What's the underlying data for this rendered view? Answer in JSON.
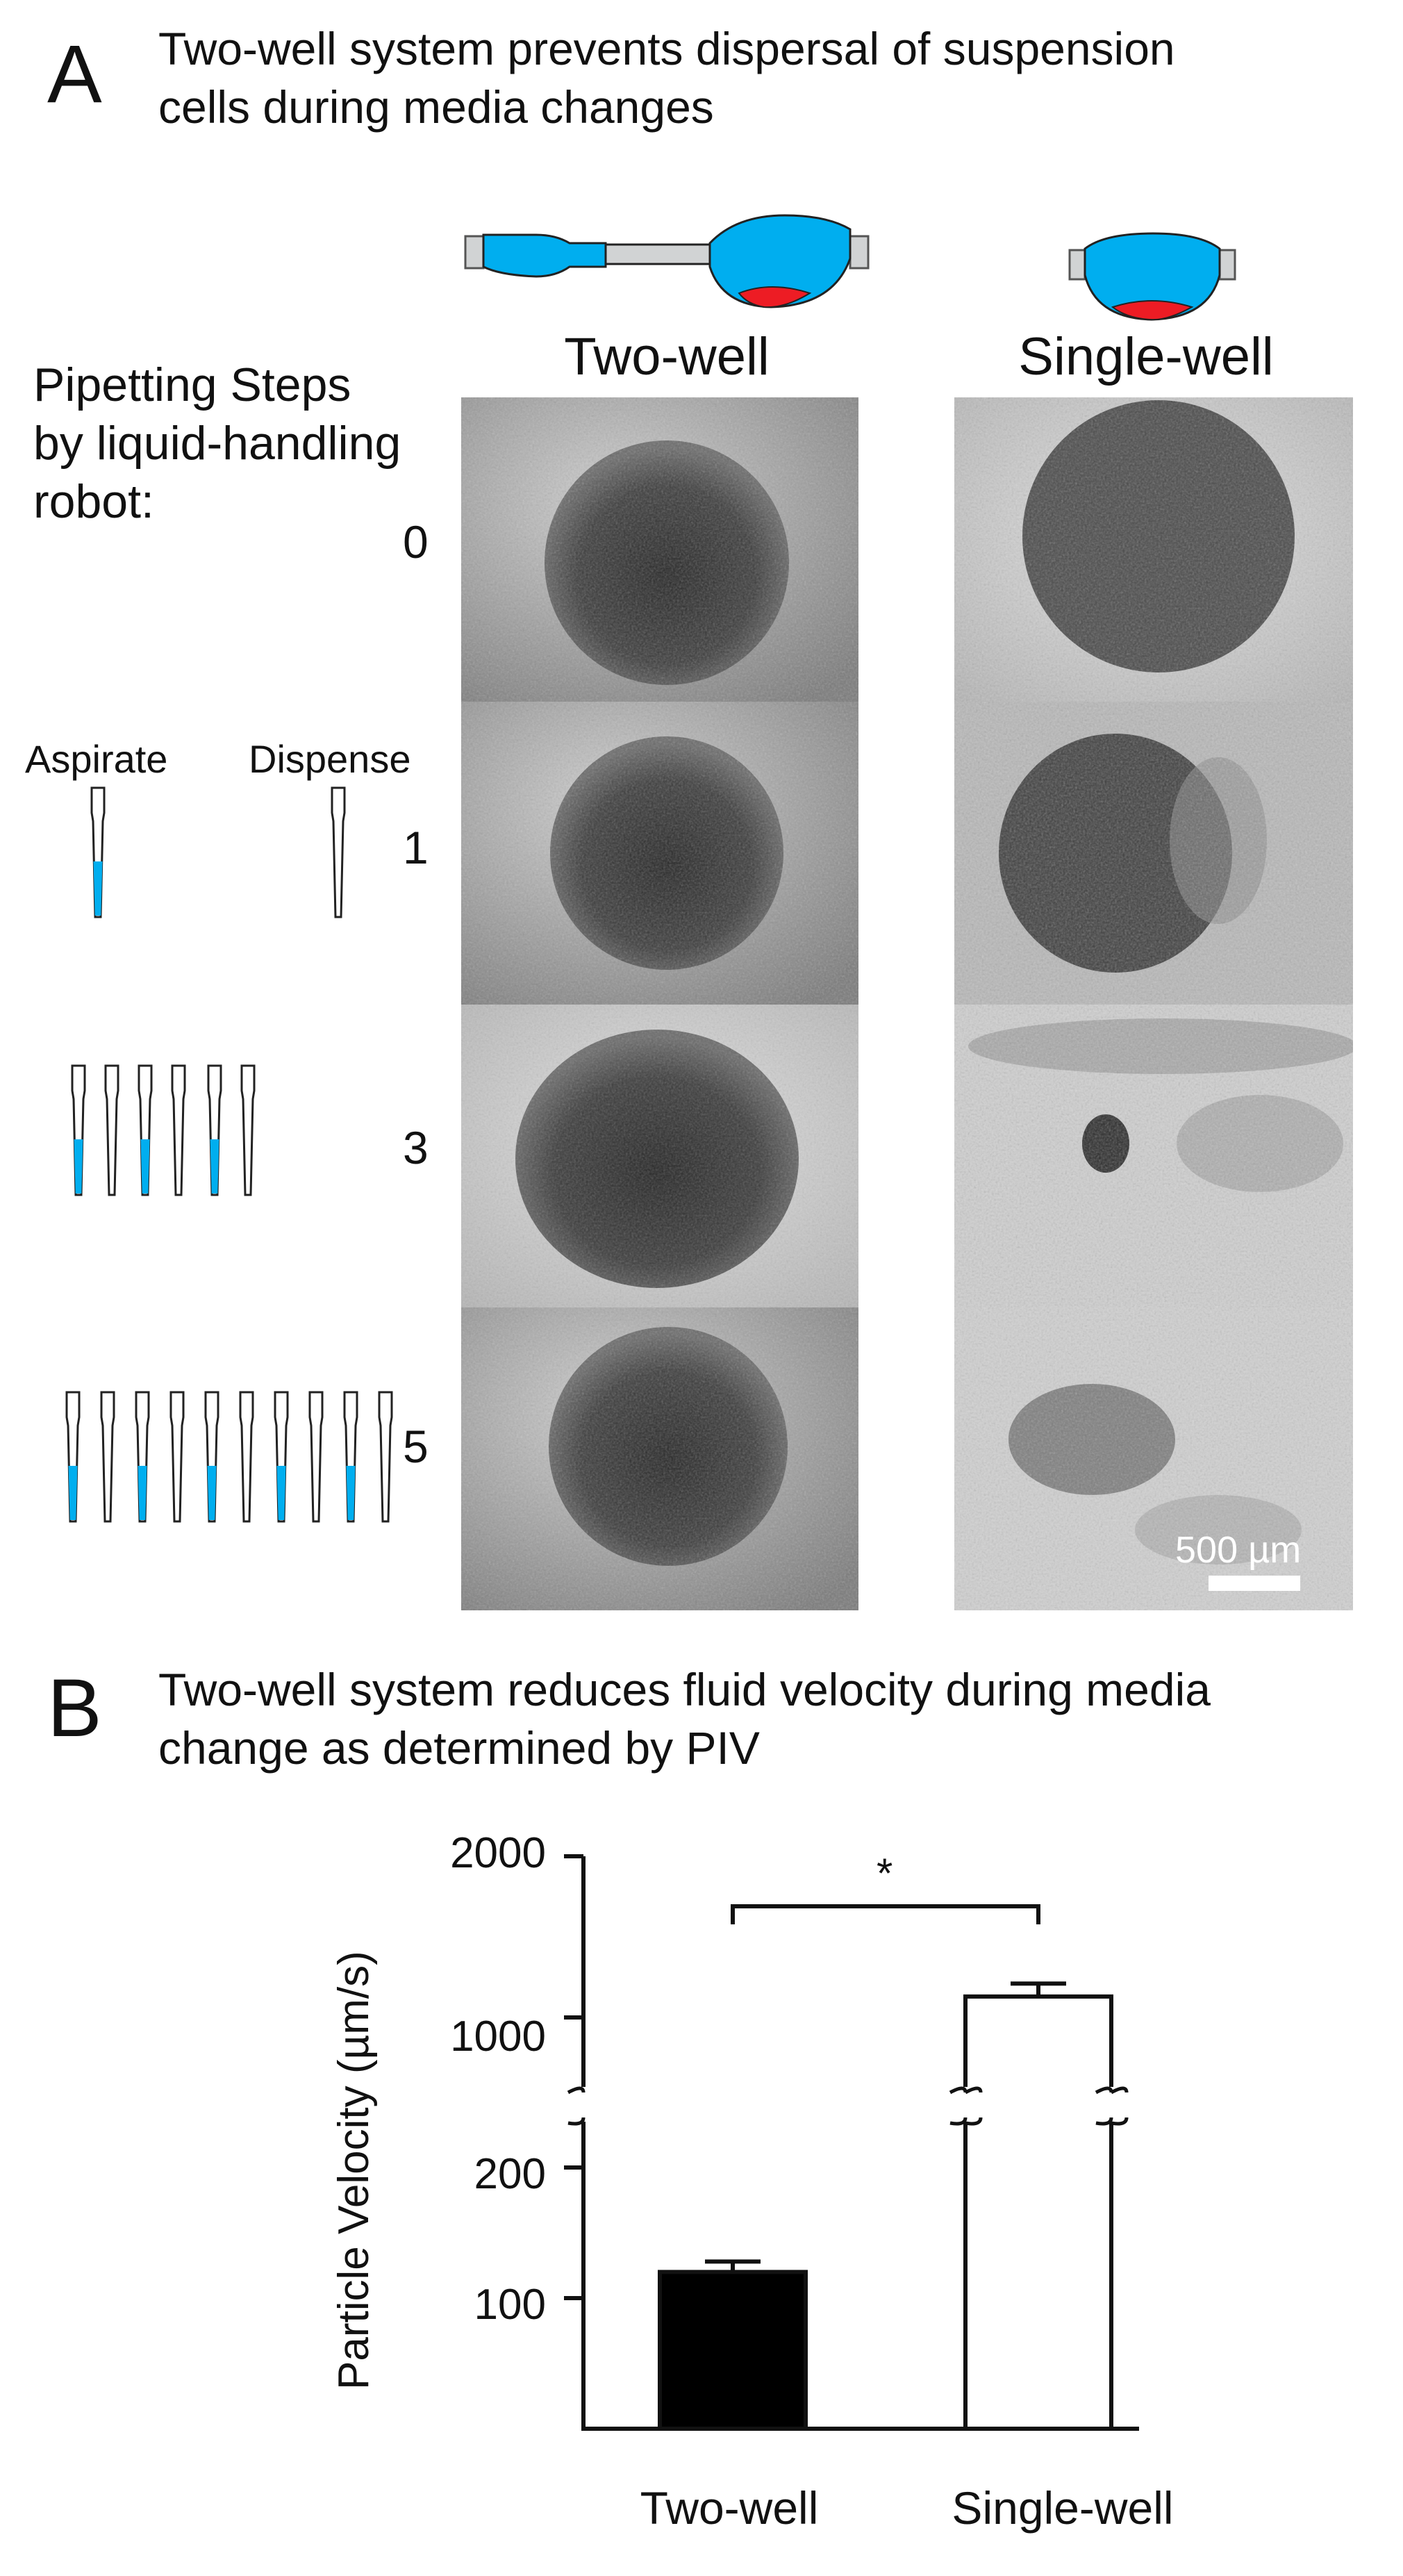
{
  "panel_a": {
    "letter": "A",
    "title_line1": "Two-well system prevents dispersal of suspension",
    "title_line2": "cells during media changes",
    "column_titles": [
      "Two-well",
      "Single-well"
    ],
    "steps_title_lines": [
      "Pipetting Steps",
      "by liquid-handling",
      "robot:"
    ],
    "aspirate_label": "Aspirate",
    "dispense_label": "Dispense",
    "step_numbers": [
      "0",
      "1",
      "3",
      "5"
    ],
    "scale_bar_label": "500 µm",
    "colors": {
      "medium": "#00AEEF",
      "cells": "#ED1C24",
      "connector": "#D1D3D4"
    },
    "icons": [
      "two-well-schematic-icon",
      "single-well-schematic-icon",
      "pipette-tip-icon"
    ]
  },
  "panel_b": {
    "letter": "B",
    "title_line1": "Two-well system reduces fluid velocity during media",
    "title_line2": "change as determined by PIV",
    "significance": "*"
  },
  "chart_data": {
    "type": "bar",
    "categories": [
      "Two-well",
      "Single-well"
    ],
    "values": [
      120,
      1130
    ],
    "errors": [
      8,
      80
    ],
    "bar_fill": [
      "#000000",
      "#ffffff"
    ],
    "ylabel": "Particle Velocity (µm/s)",
    "xlabel": "",
    "yticks": [
      "2000",
      "1000",
      "200",
      "100"
    ],
    "ytick_values": [
      2000,
      1000,
      200,
      100
    ],
    "axis_break": true,
    "lower_segment_ylim": [
      0,
      200
    ],
    "upper_segment_ylim": [
      600,
      2000
    ],
    "significance_label": "*"
  }
}
